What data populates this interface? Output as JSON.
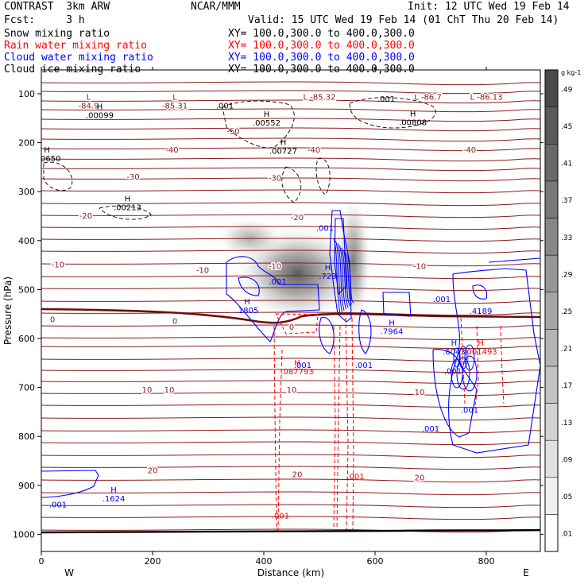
{
  "header": {
    "title_left": "CONTRAST  3km ARW",
    "center_org": "NCAR/MMM",
    "init": "Init: 12 UTC Wed 19 Feb 14",
    "fcst": "Fcst:     3 h",
    "valid": "Valid: 15 UTC Wed 19 Feb 14 (01 ChT Thu 20 Feb 14)"
  },
  "fields": [
    {
      "name": "Snow mixing ratio",
      "xy": "XY= 100.0,300.0 to 400.0,300.0",
      "color": "#000000"
    },
    {
      "name": "Rain water mixing ratio",
      "xy": "XY= 100.0,300.0 to 400.0,300.0",
      "color": "#ff0000"
    },
    {
      "name": "Cloud water mixing ratio",
      "xy": "XY= 100.0,300.0 to 400.0,300.0",
      "color": "#0000ff"
    },
    {
      "name": "Cloud ice mixing ratio",
      "xy": "XY= 100.0,300.0 to 400.0,300.0",
      "color": "#000000"
    }
  ],
  "chart_data": {
    "type": "contour cross-section",
    "xlabel": "Distance (km)",
    "ylabel": "Pressure (hPa)",
    "xlim": [
      0,
      890
    ],
    "ylim": [
      50,
      1040
    ],
    "xticks": [
      0,
      200,
      400,
      600,
      800
    ],
    "yticks": [
      100,
      200,
      300,
      400,
      500,
      600,
      700,
      800,
      900,
      1000
    ],
    "x_end_labels": {
      "left": "W",
      "right": "E"
    },
    "colorbar": {
      "unit": "g kg-1",
      "levels": [
        ".01",
        ".05",
        ".09",
        ".13",
        ".17",
        ".21",
        ".25",
        ".29",
        ".33",
        ".37",
        ".41",
        ".45",
        ".49"
      ]
    },
    "temperature_contours": {
      "color": "#8b1a1a",
      "levels": [
        {
          "value": -84,
          "label": "L\n-84.9",
          "x": 85,
          "p": 112
        },
        {
          "value": -85,
          "label": "L\n-85.31",
          "x": 240,
          "p": 112
        },
        {
          "value": -50,
          "label": "-50",
          "x": 345,
          "p": 182
        },
        {
          "value": -40,
          "label": "-40",
          "x": 235,
          "p": 220
        },
        {
          "value": -30,
          "label": "-30",
          "x": 165,
          "p": 275
        },
        {
          "value": -20,
          "label": "-20",
          "x": 80,
          "p": 355
        },
        {
          "value": -10,
          "label": "-10",
          "x": 30,
          "p": 455
        },
        {
          "value": 0,
          "label": "0",
          "x": 20,
          "p": 567
        },
        {
          "value": 10,
          "label": "10",
          "x": 190,
          "p": 710
        },
        {
          "value": 20,
          "label": "20",
          "x": 200,
          "p": 875
        }
      ],
      "extrema": [
        {
          "label": "L -85.32",
          "x": 500,
          "p": 112
        },
        {
          "label": "L -86.7",
          "x": 695,
          "p": 112
        },
        {
          "label": "L -86.13",
          "x": 800,
          "p": 112
        },
        {
          "label": "-40",
          "x": 490,
          "p": 220
        },
        {
          "label": "-40",
          "x": 770,
          "p": 220
        },
        {
          "label": "-30",
          "x": 420,
          "p": 278
        },
        {
          "label": "-20",
          "x": 460,
          "p": 358
        },
        {
          "label": "-10",
          "x": 420,
          "p": 458
        },
        {
          "label": "-10",
          "x": 680,
          "p": 458
        },
        {
          "label": "-10",
          "x": 290,
          "p": 466
        },
        {
          "label": "0",
          "x": 240,
          "p": 570
        },
        {
          "label": "0",
          "x": 450,
          "p": 582
        },
        {
          "label": "10",
          "x": 230,
          "p": 710
        },
        {
          "label": "10",
          "x": 450,
          "p": 710
        },
        {
          "label": "10",
          "x": 680,
          "p": 715
        },
        {
          "label": "20",
          "x": 460,
          "p": 883
        },
        {
          "label": "20",
          "x": 680,
          "p": 890
        }
      ]
    },
    "cloud_ice_labels": [
      {
        "label": "H\n.00099",
        "x": 105,
        "p": 132
      },
      {
        "label": ".001",
        "x": 330,
        "p": 130
      },
      {
        "label": "H\n.00552",
        "x": 405,
        "p": 147
      },
      {
        "label": ".001",
        "x": 620,
        "p": 116
      },
      {
        "label": "H\n.00808",
        "x": 668,
        "p": 146
      },
      {
        "label": "H\n.00727",
        "x": 435,
        "p": 205
      },
      {
        "label": "H\n.00650",
        "x": 10,
        "p": 220
      },
      {
        "label": "H\n.00213",
        "x": 155,
        "p": 320
      }
    ],
    "cloud_water_labels": [
      {
        "label": ".001",
        "x": 425,
        "p": 490
      },
      {
        "label": "H\n.1805",
        "x": 370,
        "p": 530
      },
      {
        "label": ".001",
        "x": 510,
        "p": 380
      },
      {
        "label": "H\n.723",
        "x": 515,
        "p": 460
      },
      {
        "label": "H\n.7964",
        "x": 630,
        "p": 573
      },
      {
        "label": ".001",
        "x": 720,
        "p": 525
      },
      {
        "label": ".4189",
        "x": 790,
        "p": 550
      },
      {
        "label": "H\n.6043",
        "x": 742,
        "p": 615
      },
      {
        "label": ".001",
        "x": 740,
        "p": 672
      },
      {
        "label": ".001",
        "x": 770,
        "p": 752
      },
      {
        "label": ".001",
        "x": 700,
        "p": 790
      },
      {
        "label": ".001",
        "x": 470,
        "p": 660
      },
      {
        "label": ".001",
        "x": 580,
        "p": 660
      },
      {
        "label": "H\n.1624",
        "x": 130,
        "p": 915
      },
      {
        "label": ".001",
        "x": 30,
        "p": 945
      }
    ],
    "rain_labels": [
      {
        "label": "H\n.087793",
        "x": 460,
        "p": 655
      },
      {
        "label": "H\n.001493",
        "x": 790,
        "p": 615
      },
      {
        "label": ".001",
        "x": 565,
        "p": 887
      },
      {
        "label": ".001",
        "x": 430,
        "p": 968
      }
    ],
    "snow_core": {
      "x_center": 475,
      "p_center": 460,
      "max": 0.41
    }
  }
}
